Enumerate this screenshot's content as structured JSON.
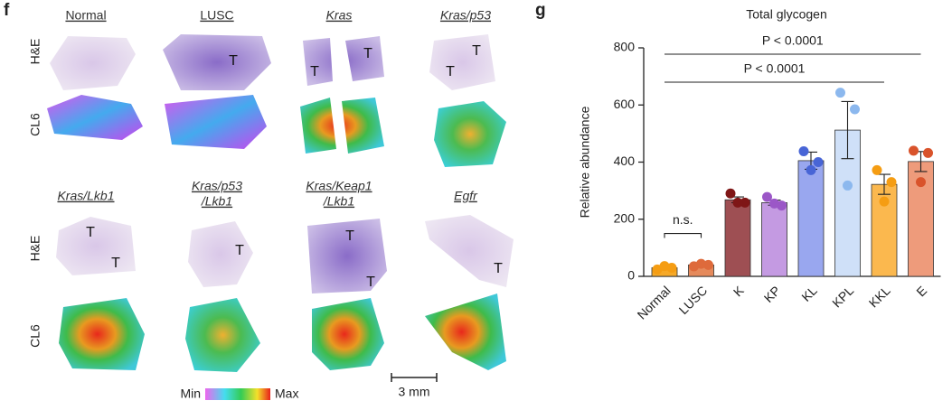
{
  "panel_f": {
    "label": "f",
    "columns": [
      {
        "title": [
          "Normal"
        ],
        "italic": false
      },
      {
        "title": [
          "LUSC"
        ],
        "italic": false
      },
      {
        "title": [
          "Kras"
        ],
        "italic": true
      },
      {
        "title": [
          "Kras/p53"
        ],
        "italic": true
      },
      {
        "title": [
          "Kras/Lkb1"
        ],
        "italic": true
      },
      {
        "title": [
          "Kras/p53",
          "/Lkb1"
        ],
        "italic": true
      },
      {
        "title": [
          "Kras/Keap1",
          "/Lkb1"
        ],
        "italic": true
      },
      {
        "title": [
          "Egfr"
        ],
        "italic": true
      }
    ],
    "row_labels": [
      "H&E",
      "CL6",
      "H&E",
      "CL6"
    ],
    "tumor_labels": [
      "T",
      "T",
      "T",
      "T",
      "T",
      "T",
      "T",
      "T",
      "T",
      "T",
      "T"
    ],
    "colorbar": {
      "min": "Min",
      "max": "Max"
    },
    "scale_bar": "3 mm"
  },
  "chart_data": {
    "type": "bar",
    "panel_label": "g",
    "title": "Total glycogen",
    "y_label": "Relative abundance",
    "categories": [
      "Normal",
      "LUSC",
      "K",
      "KP",
      "KL",
      "KPL",
      "KKL",
      "E"
    ],
    "values": [
      30,
      40,
      268,
      258,
      405,
      512,
      322,
      402
    ],
    "errors": [
      5,
      3,
      10,
      9,
      30,
      100,
      35,
      35
    ],
    "points": [
      [
        24,
        30,
        36
      ],
      [
        35,
        40,
        44
      ],
      [
        290,
        258,
        258
      ],
      [
        278,
        248,
        255
      ],
      [
        438,
        400,
        372
      ],
      [
        643,
        585,
        318
      ],
      [
        372,
        330,
        262
      ],
      [
        440,
        432,
        330
      ]
    ],
    "colors": [
      "#f6a928",
      "#e58a5c",
      "#9e4f53",
      "#c49ae2",
      "#99a7ef",
      "#cfe0f8",
      "#fbb84e",
      "#ee9b7b"
    ],
    "point_colors": [
      "#f59d13",
      "#de6a3b",
      "#7f1616",
      "#9b57c7",
      "#4865d6",
      "#8cb8ee",
      "#f59d13",
      "#d9532b"
    ],
    "ylim": [
      0,
      800
    ],
    "yticks": [
      0,
      200,
      400,
      600,
      800
    ],
    "comparisons": [
      {
        "from": "Normal",
        "to": "E",
        "label": "P < 0.0001"
      },
      {
        "from": "Normal",
        "to": "KKL",
        "label": "P < 0.0001"
      },
      {
        "from": "Normal",
        "to": "LUSC",
        "label": "n.s."
      }
    ]
  }
}
